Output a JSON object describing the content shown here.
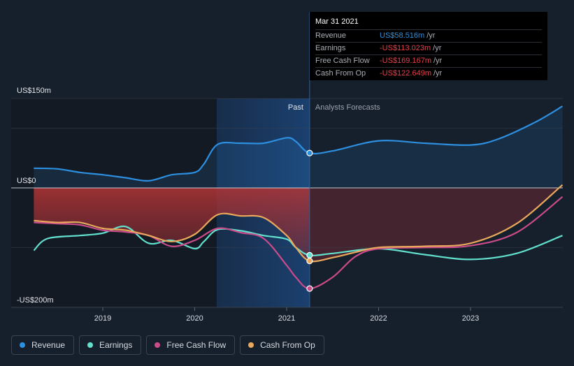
{
  "chart_data": {
    "type": "line",
    "x_labels": [
      "2019",
      "2020",
      "2021",
      "2022",
      "2023"
    ],
    "y_labels": {
      "top": "US$150m",
      "zero": "US$0",
      "bottom": "-US$200m"
    },
    "ylim": [
      -200,
      150
    ],
    "divider_labels": {
      "past": "Past",
      "forecast": "Analysts Forecasts"
    },
    "past_end": 2021.25,
    "series": [
      {
        "name": "Revenue",
        "color": "#2d8fe0",
        "points": [
          [
            2018.25,
            33
          ],
          [
            2018.5,
            32
          ],
          [
            2018.75,
            26
          ],
          [
            2019.0,
            22
          ],
          [
            2019.25,
            17
          ],
          [
            2019.5,
            12
          ],
          [
            2019.75,
            22
          ],
          [
            2020.0,
            26
          ],
          [
            2020.1,
            40
          ],
          [
            2020.25,
            73
          ],
          [
            2020.5,
            75
          ],
          [
            2020.75,
            75
          ],
          [
            2021.0,
            84
          ],
          [
            2021.1,
            78
          ],
          [
            2021.25,
            58.5
          ],
          [
            2021.5,
            62
          ],
          [
            2022.0,
            79
          ],
          [
            2022.5,
            75
          ],
          [
            2023.0,
            72
          ],
          [
            2023.3,
            82
          ],
          [
            2023.7,
            110
          ],
          [
            2024.0,
            137
          ]
        ]
      },
      {
        "name": "Earnings",
        "color": "#62e0ce",
        "points": [
          [
            2018.25,
            -105
          ],
          [
            2018.4,
            -85
          ],
          [
            2018.75,
            -80
          ],
          [
            2019.0,
            -76
          ],
          [
            2019.25,
            -65
          ],
          [
            2019.5,
            -93
          ],
          [
            2019.75,
            -88
          ],
          [
            2020.0,
            -102
          ],
          [
            2020.1,
            -90
          ],
          [
            2020.25,
            -70
          ],
          [
            2020.5,
            -72
          ],
          [
            2020.75,
            -80
          ],
          [
            2021.0,
            -86
          ],
          [
            2021.1,
            -100
          ],
          [
            2021.25,
            -113
          ],
          [
            2021.5,
            -110
          ],
          [
            2022.0,
            -102
          ],
          [
            2022.5,
            -112
          ],
          [
            2023.0,
            -120
          ],
          [
            2023.5,
            -110
          ],
          [
            2024.0,
            -80
          ]
        ]
      },
      {
        "name": "Free Cash Flow",
        "color": "#c94b8a",
        "points": [
          [
            2018.25,
            -58
          ],
          [
            2018.5,
            -60
          ],
          [
            2018.75,
            -62
          ],
          [
            2019.0,
            -71
          ],
          [
            2019.25,
            -74
          ],
          [
            2019.5,
            -80
          ],
          [
            2019.75,
            -98
          ],
          [
            2020.0,
            -88
          ],
          [
            2020.25,
            -68
          ],
          [
            2020.5,
            -75
          ],
          [
            2020.75,
            -85
          ],
          [
            2021.0,
            -130
          ],
          [
            2021.1,
            -150
          ],
          [
            2021.25,
            -169
          ],
          [
            2021.5,
            -150
          ],
          [
            2021.75,
            -115
          ],
          [
            2022.0,
            -102
          ],
          [
            2022.5,
            -100
          ],
          [
            2023.0,
            -97
          ],
          [
            2023.5,
            -75
          ],
          [
            2024.0,
            -15
          ]
        ]
      },
      {
        "name": "Cash From Op",
        "color": "#e9a85b",
        "points": [
          [
            2018.25,
            -55
          ],
          [
            2018.5,
            -58
          ],
          [
            2018.75,
            -58
          ],
          [
            2019.0,
            -68
          ],
          [
            2019.25,
            -71
          ],
          [
            2019.5,
            -80
          ],
          [
            2019.75,
            -90
          ],
          [
            2020.0,
            -78
          ],
          [
            2020.25,
            -45
          ],
          [
            2020.5,
            -47
          ],
          [
            2020.75,
            -50
          ],
          [
            2021.0,
            -80
          ],
          [
            2021.1,
            -100
          ],
          [
            2021.25,
            -122.6
          ],
          [
            2021.5,
            -117
          ],
          [
            2021.75,
            -108
          ],
          [
            2022.0,
            -100
          ],
          [
            2022.5,
            -98
          ],
          [
            2023.0,
            -93
          ],
          [
            2023.5,
            -60
          ],
          [
            2024.0,
            5
          ]
        ]
      }
    ]
  },
  "tooltip": {
    "date": "Mar 31 2021",
    "rows": [
      {
        "label": "Revenue",
        "value": "US$58.516m",
        "unit": "/yr",
        "color": "#2d8fe0"
      },
      {
        "label": "Earnings",
        "value": "-US$113.023m",
        "unit": "/yr",
        "color": "#e8404a"
      },
      {
        "label": "Free Cash Flow",
        "value": "-US$169.167m",
        "unit": "/yr",
        "color": "#e8404a"
      },
      {
        "label": "Cash From Op",
        "value": "-US$122.649m",
        "unit": "/yr",
        "color": "#e8404a"
      }
    ]
  },
  "legend": [
    {
      "label": "Revenue",
      "color": "#2d8fe0"
    },
    {
      "label": "Earnings",
      "color": "#62e0ce"
    },
    {
      "label": "Free Cash Flow",
      "color": "#c94b8a"
    },
    {
      "label": "Cash From Op",
      "color": "#e9a85b"
    }
  ]
}
